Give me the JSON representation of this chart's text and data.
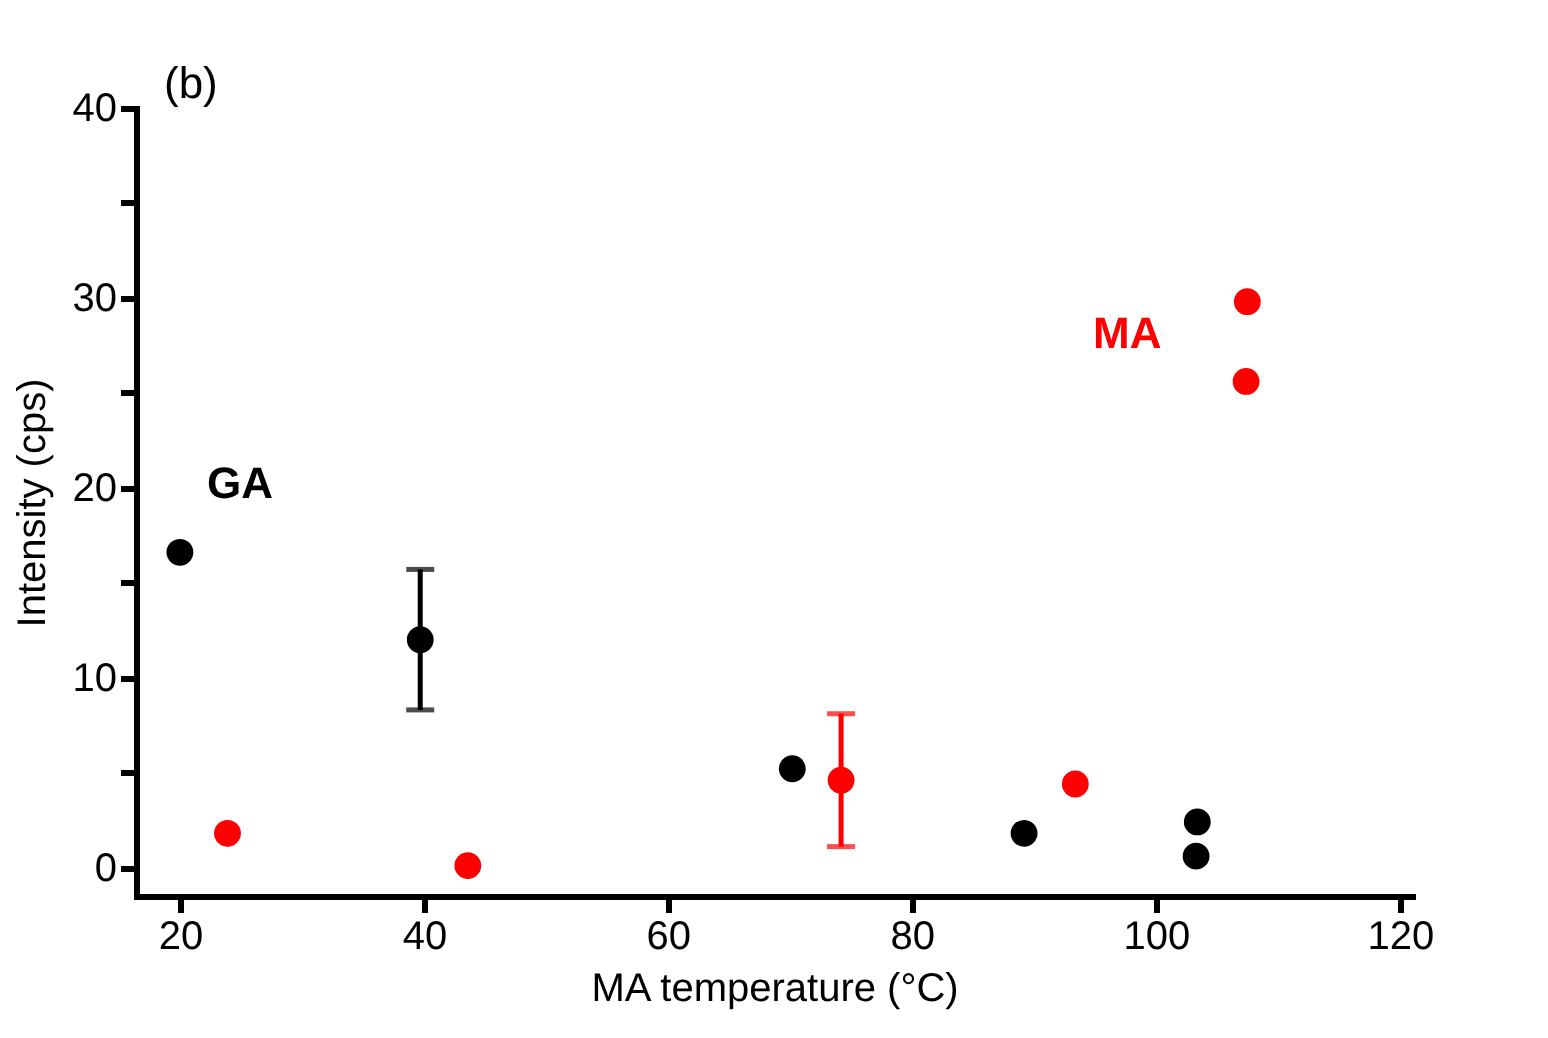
{
  "chart_data": {
    "type": "scatter",
    "xlabel": "MA temperature (°C)",
    "ylabel": "Intensity (cps)",
    "annotations": [
      "(b)"
    ],
    "xlim": [
      16.4,
      121
    ],
    "xticks": [
      20,
      40,
      60,
      80,
      100,
      120
    ],
    "ylim": [
      -1.5,
      40
    ],
    "yticks": [
      0,
      {
        "value": 5,
        "label": null
      },
      10,
      {
        "value": 15,
        "label": null
      },
      20,
      {
        "value": 25,
        "label": null
      },
      30,
      {
        "value": 35,
        "label": null
      },
      40
    ],
    "grid": false,
    "marker": "circle",
    "series": [
      {
        "name": "GA",
        "color": "#000000",
        "x": [
          20,
          39.7,
          70.2,
          89.2,
          103.4,
          103.3
        ],
        "values": [
          16.6,
          12.0,
          5.2,
          1.8,
          2.4,
          0.6
        ],
        "errors": [
          null,
          3.7,
          null,
          null,
          null,
          null
        ]
      },
      {
        "name": "MA",
        "color": "#ff0000",
        "x": [
          23.9,
          43.6,
          74.2,
          93.4,
          107.5,
          107.4
        ],
        "values": [
          1.8,
          0.1,
          4.6,
          4.4,
          29.8,
          25.6
        ],
        "errors": [
          null,
          null,
          3.5,
          null,
          null,
          null
        ]
      }
    ]
  }
}
